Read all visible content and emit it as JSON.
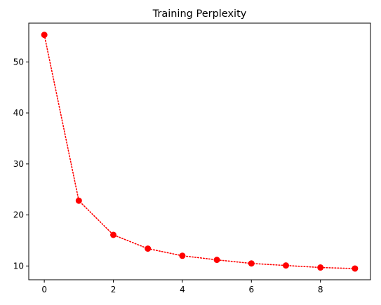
{
  "chart_data": {
    "type": "line",
    "title": "Training Perplexity",
    "xlabel": "",
    "ylabel": "",
    "x": [
      0,
      1,
      2,
      3,
      4,
      5,
      6,
      7,
      8,
      9
    ],
    "series": [
      {
        "values": [
          55.3,
          22.8,
          16.1,
          13.4,
          12.0,
          11.2,
          10.5,
          10.1,
          9.7,
          9.5
        ],
        "color": "#ff0000",
        "line_style": "dotted",
        "marker": "circle"
      }
    ],
    "xlim": [
      -0.45,
      9.45
    ],
    "ylim": [
      7.3,
      57.6
    ],
    "xticks": [
      0,
      2,
      4,
      6,
      8
    ],
    "yticks": [
      10,
      20,
      30,
      40,
      50
    ],
    "grid": false
  }
}
